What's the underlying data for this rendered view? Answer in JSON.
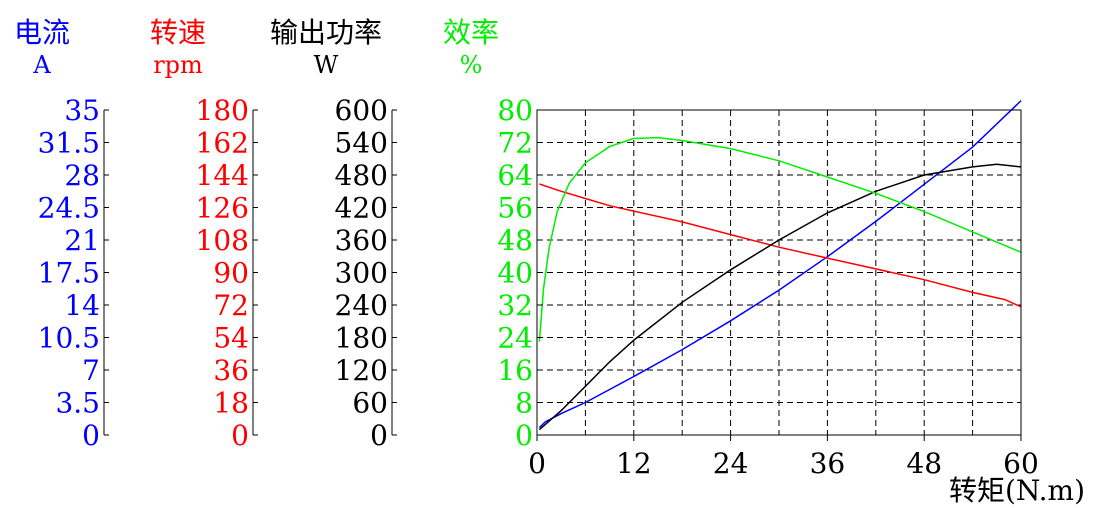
{
  "chart_data": {
    "type": "line",
    "xlabel": "转矩(N.m)",
    "x_ticks": [
      0,
      12,
      24,
      36,
      48,
      60
    ],
    "xlim": [
      0,
      60
    ],
    "grid": true,
    "axes": [
      {
        "id": "current",
        "name": "电流",
        "unit": "A",
        "color": "#0000ff",
        "ticks": [
          "0",
          "3.5",
          "7",
          "10.5",
          "14",
          "17.5",
          "21",
          "24.5",
          "28",
          "31.5",
          "35"
        ],
        "range": [
          0,
          35
        ]
      },
      {
        "id": "speed",
        "name": "转速",
        "unit": "rpm",
        "color": "#ff0000",
        "ticks": [
          "0",
          "18",
          "36",
          "54",
          "72",
          "90",
          "108",
          "126",
          "144",
          "162",
          "180"
        ],
        "range": [
          0,
          180
        ]
      },
      {
        "id": "power",
        "name": "输出功率",
        "unit": "W",
        "color": "#000000",
        "ticks": [
          "0",
          "60",
          "120",
          "180",
          "240",
          "300",
          "360",
          "420",
          "480",
          "540",
          "600"
        ],
        "range": [
          0,
          600
        ]
      },
      {
        "id": "efficiency",
        "name": "效率",
        "unit": "%",
        "color": "#00ee00",
        "ticks": [
          "0",
          "8",
          "16",
          "24",
          "32",
          "40",
          "48",
          "56",
          "64",
          "72",
          "80"
        ],
        "range": [
          0,
          80
        ]
      }
    ],
    "series": [
      {
        "name": "电流",
        "axis": "current",
        "color": "#0000ff",
        "points": [
          [
            0.3,
            0.8
          ],
          [
            1,
            1.4
          ],
          [
            3,
            2.3
          ],
          [
            6,
            3.5
          ],
          [
            9,
            4.9
          ],
          [
            12,
            6.3
          ],
          [
            18,
            9.2
          ],
          [
            24,
            12.3
          ],
          [
            30,
            15.6
          ],
          [
            36,
            19.2
          ],
          [
            42,
            23.0
          ],
          [
            48,
            27.0
          ],
          [
            54,
            31.0
          ],
          [
            60,
            36.0
          ]
        ]
      },
      {
        "name": "转速",
        "axis": "speed",
        "color": "#ff0000",
        "points": [
          [
            0.3,
            139
          ],
          [
            3,
            135
          ],
          [
            6,
            131
          ],
          [
            9,
            127
          ],
          [
            12,
            124
          ],
          [
            18,
            118
          ],
          [
            24,
            111
          ],
          [
            30,
            104
          ],
          [
            36,
            98
          ],
          [
            42,
            92
          ],
          [
            48,
            86
          ],
          [
            54,
            79
          ],
          [
            58,
            75
          ],
          [
            60,
            71
          ]
        ]
      },
      {
        "name": "输出功率",
        "axis": "power",
        "color": "#000000",
        "points": [
          [
            0.3,
            10
          ],
          [
            3,
            45
          ],
          [
            6,
            90
          ],
          [
            9,
            135
          ],
          [
            12,
            175
          ],
          [
            18,
            245
          ],
          [
            24,
            305
          ],
          [
            30,
            360
          ],
          [
            36,
            410
          ],
          [
            42,
            450
          ],
          [
            48,
            480
          ],
          [
            54,
            495
          ],
          [
            57,
            500
          ],
          [
            60,
            495
          ]
        ]
      },
      {
        "name": "效率",
        "axis": "efficiency",
        "color": "#00ee00",
        "points": [
          [
            0.3,
            23
          ],
          [
            0.8,
            36
          ],
          [
            1.5,
            46
          ],
          [
            2.5,
            55
          ],
          [
            4,
            62
          ],
          [
            6,
            67
          ],
          [
            9,
            71
          ],
          [
            12,
            73
          ],
          [
            15,
            73.2
          ],
          [
            18,
            72.5
          ],
          [
            24,
            70.5
          ],
          [
            30,
            67.5
          ],
          [
            36,
            63.5
          ],
          [
            42,
            59.5
          ],
          [
            48,
            55
          ],
          [
            54,
            50
          ],
          [
            60,
            45
          ]
        ]
      }
    ]
  }
}
